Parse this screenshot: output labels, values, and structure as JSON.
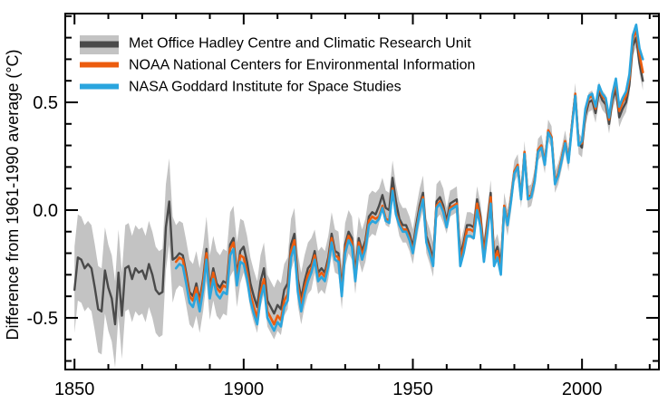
{
  "figure": {
    "background": "#ffffff",
    "axis_color": "#000000"
  },
  "chart_data": {
    "type": "line",
    "title": "",
    "xlabel": "",
    "ylabel": "Difference from 1961-1990 average (°C)",
    "xlim": [
      1847,
      2023
    ],
    "ylim": [
      -0.744,
      0.916
    ],
    "x_major_ticks": [
      1850,
      1900,
      1950,
      2000
    ],
    "x_minor_step": 10,
    "x_minor_range": [
      1850,
      2020
    ],
    "y_major_ticks": [
      -0.5,
      0.0,
      0.5
    ],
    "y_major_tick_labels": [
      "-0.5",
      "0.0",
      "0.5"
    ],
    "y_minor_step": 0.1,
    "y_minor_range": [
      -0.7,
      0.9
    ],
    "grid": false,
    "legend_position": "top-left",
    "series": [
      {
        "name": "Met Office Hadley Centre and Climatic Research Unit",
        "color": "#4a4a4a",
        "band_color": "#c3c3c3",
        "start_year": 1850,
        "end_year": 2018,
        "values": [
          -0.37,
          -0.22,
          -0.23,
          -0.27,
          -0.25,
          -0.27,
          -0.36,
          -0.46,
          -0.47,
          -0.28,
          -0.36,
          -0.41,
          -0.53,
          -0.29,
          -0.49,
          -0.27,
          -0.26,
          -0.32,
          -0.27,
          -0.29,
          -0.28,
          -0.32,
          -0.25,
          -0.3,
          -0.37,
          -0.39,
          -0.38,
          -0.08,
          0.04,
          -0.23,
          -0.22,
          -0.2,
          -0.21,
          -0.29,
          -0.38,
          -0.4,
          -0.34,
          -0.42,
          -0.32,
          -0.18,
          -0.36,
          -0.27,
          -0.34,
          -0.36,
          -0.33,
          -0.34,
          -0.16,
          -0.13,
          -0.3,
          -0.19,
          -0.17,
          -0.24,
          -0.34,
          -0.4,
          -0.45,
          -0.33,
          -0.27,
          -0.42,
          -0.45,
          -0.48,
          -0.44,
          -0.46,
          -0.37,
          -0.34,
          -0.16,
          -0.11,
          -0.32,
          -0.41,
          -0.33,
          -0.27,
          -0.25,
          -0.19,
          -0.29,
          -0.27,
          -0.29,
          -0.22,
          -0.11,
          -0.19,
          -0.2,
          -0.36,
          -0.16,
          -0.1,
          -0.13,
          -0.29,
          -0.13,
          -0.19,
          -0.14,
          -0.03,
          -0.01,
          -0.02,
          0.02,
          0.07,
          0.01,
          0.0,
          0.15,
          0.04,
          -0.04,
          -0.07,
          -0.07,
          -0.11,
          -0.17,
          -0.07,
          0.02,
          0.08,
          -0.12,
          -0.17,
          -0.23,
          0.04,
          0.06,
          0.02,
          -0.05,
          0.03,
          0.04,
          0.05,
          -0.21,
          -0.15,
          -0.07,
          -0.07,
          -0.08,
          0.05,
          -0.03,
          -0.19,
          -0.06,
          0.08,
          -0.21,
          -0.17,
          -0.25,
          0.02,
          -0.06,
          0.05,
          0.18,
          0.21,
          0.06,
          0.27,
          0.06,
          0.07,
          0.14,
          0.28,
          0.3,
          0.22,
          0.37,
          0.34,
          0.13,
          0.17,
          0.24,
          0.32,
          0.23,
          0.39,
          0.54,
          0.31,
          0.29,
          0.44,
          0.5,
          0.51,
          0.45,
          0.55,
          0.51,
          0.49,
          0.4,
          0.51,
          0.56,
          0.43,
          0.47,
          0.5,
          0.58,
          0.76,
          0.8,
          0.68,
          0.6
        ],
        "uncertainty_halfwidth": [
          0.2,
          0.2,
          0.2,
          0.2,
          0.2,
          0.2,
          0.2,
          0.2,
          0.2,
          0.2,
          0.2,
          0.2,
          0.2,
          0.2,
          0.2,
          0.2,
          0.2,
          0.2,
          0.2,
          0.2,
          0.2,
          0.2,
          0.2,
          0.2,
          0.2,
          0.2,
          0.2,
          0.2,
          0.2,
          0.2,
          0.15,
          0.15,
          0.15,
          0.15,
          0.15,
          0.15,
          0.15,
          0.15,
          0.15,
          0.15,
          0.15,
          0.15,
          0.15,
          0.15,
          0.15,
          0.15,
          0.15,
          0.15,
          0.15,
          0.15,
          0.12,
          0.12,
          0.12,
          0.12,
          0.12,
          0.12,
          0.12,
          0.12,
          0.12,
          0.12,
          0.12,
          0.12,
          0.12,
          0.12,
          0.12,
          0.12,
          0.12,
          0.12,
          0.12,
          0.12,
          0.12,
          0.1,
          0.1,
          0.1,
          0.1,
          0.1,
          0.1,
          0.1,
          0.1,
          0.1,
          0.1,
          0.1,
          0.1,
          0.1,
          0.1,
          0.1,
          0.1,
          0.1,
          0.1,
          0.1,
          0.08,
          0.08,
          0.08,
          0.08,
          0.08,
          0.08,
          0.08,
          0.08,
          0.08,
          0.08,
          0.08,
          0.08,
          0.08,
          0.08,
          0.08,
          0.08,
          0.08,
          0.08,
          0.08,
          0.08,
          0.06,
          0.06,
          0.06,
          0.06,
          0.06,
          0.06,
          0.06,
          0.06,
          0.06,
          0.06,
          0.06,
          0.06,
          0.06,
          0.06,
          0.06,
          0.06,
          0.06,
          0.06,
          0.06,
          0.06,
          0.05,
          0.05,
          0.05,
          0.05,
          0.05,
          0.05,
          0.05,
          0.05,
          0.05,
          0.05,
          0.05,
          0.05,
          0.05,
          0.05,
          0.05,
          0.05,
          0.05,
          0.05,
          0.05,
          0.05,
          0.045,
          0.045,
          0.045,
          0.045,
          0.045,
          0.045,
          0.045,
          0.045,
          0.045,
          0.045,
          0.045,
          0.045,
          0.045,
          0.045,
          0.045,
          0.045,
          0.045,
          0.045,
          0.045
        ]
      },
      {
        "name": "NOAA National Centers for Environmental Information",
        "color": "#ec5c0e",
        "start_year": 1880,
        "end_year": 2018,
        "values": [
          -0.24,
          -0.22,
          -0.23,
          -0.31,
          -0.4,
          -0.42,
          -0.36,
          -0.44,
          -0.34,
          -0.2,
          -0.38,
          -0.29,
          -0.36,
          -0.38,
          -0.35,
          -0.36,
          -0.18,
          -0.15,
          -0.32,
          -0.21,
          -0.22,
          -0.29,
          -0.39,
          -0.45,
          -0.5,
          -0.38,
          -0.32,
          -0.47,
          -0.5,
          -0.53,
          -0.49,
          -0.51,
          -0.42,
          -0.39,
          -0.19,
          -0.14,
          -0.35,
          -0.44,
          -0.36,
          -0.3,
          -0.27,
          -0.21,
          -0.31,
          -0.29,
          -0.31,
          -0.24,
          -0.13,
          -0.21,
          -0.22,
          -0.38,
          -0.18,
          -0.12,
          -0.15,
          -0.31,
          -0.15,
          -0.21,
          -0.16,
          -0.05,
          -0.03,
          -0.04,
          -0.03,
          0.02,
          -0.04,
          -0.05,
          0.1,
          -0.01,
          -0.06,
          -0.09,
          -0.09,
          -0.13,
          -0.19,
          -0.09,
          0.0,
          0.06,
          -0.14,
          -0.19,
          -0.25,
          0.02,
          0.04,
          0.0,
          -0.07,
          0.01,
          0.02,
          0.03,
          -0.23,
          -0.17,
          -0.09,
          -0.09,
          -0.1,
          0.03,
          -0.05,
          -0.21,
          -0.08,
          0.06,
          -0.23,
          -0.19,
          -0.27,
          0.02,
          -0.06,
          0.05,
          0.18,
          0.21,
          0.06,
          0.27,
          0.06,
          0.07,
          0.14,
          0.28,
          0.3,
          0.22,
          0.37,
          0.34,
          0.13,
          0.17,
          0.24,
          0.32,
          0.23,
          0.39,
          0.54,
          0.31,
          0.31,
          0.46,
          0.52,
          0.53,
          0.47,
          0.57,
          0.53,
          0.51,
          0.42,
          0.53,
          0.59,
          0.46,
          0.5,
          0.53,
          0.61,
          0.79,
          0.84,
          0.72,
          0.64
        ]
      },
      {
        "name": "NASA Goddard Institute for Space Studies",
        "color": "#2aa5de",
        "start_year": 1880,
        "end_year": 2018,
        "values": [
          -0.27,
          -0.25,
          -0.26,
          -0.34,
          -0.43,
          -0.45,
          -0.39,
          -0.47,
          -0.37,
          -0.23,
          -0.41,
          -0.32,
          -0.39,
          -0.41,
          -0.38,
          -0.39,
          -0.21,
          -0.18,
          -0.35,
          -0.24,
          -0.25,
          -0.32,
          -0.42,
          -0.48,
          -0.53,
          -0.41,
          -0.35,
          -0.5,
          -0.53,
          -0.56,
          -0.52,
          -0.54,
          -0.45,
          -0.42,
          -0.22,
          -0.17,
          -0.38,
          -0.47,
          -0.39,
          -0.33,
          -0.29,
          -0.23,
          -0.33,
          -0.31,
          -0.33,
          -0.26,
          -0.15,
          -0.23,
          -0.24,
          -0.4,
          -0.2,
          -0.14,
          -0.17,
          -0.33,
          -0.17,
          -0.23,
          -0.18,
          -0.07,
          -0.05,
          -0.06,
          -0.04,
          0.01,
          -0.05,
          -0.06,
          0.09,
          -0.02,
          -0.07,
          -0.1,
          -0.1,
          -0.14,
          -0.2,
          -0.1,
          -0.01,
          0.05,
          -0.15,
          -0.2,
          -0.26,
          0.01,
          0.03,
          -0.01,
          -0.08,
          0.0,
          0.01,
          0.02,
          -0.26,
          -0.2,
          -0.12,
          -0.12,
          -0.13,
          0.0,
          -0.08,
          -0.24,
          -0.11,
          0.03,
          -0.26,
          -0.22,
          -0.3,
          0.01,
          -0.07,
          0.04,
          0.17,
          0.2,
          0.05,
          0.26,
          0.05,
          0.06,
          0.13,
          0.27,
          0.29,
          0.21,
          0.36,
          0.33,
          0.12,
          0.16,
          0.23,
          0.31,
          0.22,
          0.38,
          0.53,
          0.3,
          0.32,
          0.47,
          0.53,
          0.54,
          0.48,
          0.58,
          0.54,
          0.52,
          0.43,
          0.54,
          0.61,
          0.48,
          0.52,
          0.55,
          0.63,
          0.81,
          0.86,
          0.75,
          0.7
        ]
      }
    ]
  }
}
